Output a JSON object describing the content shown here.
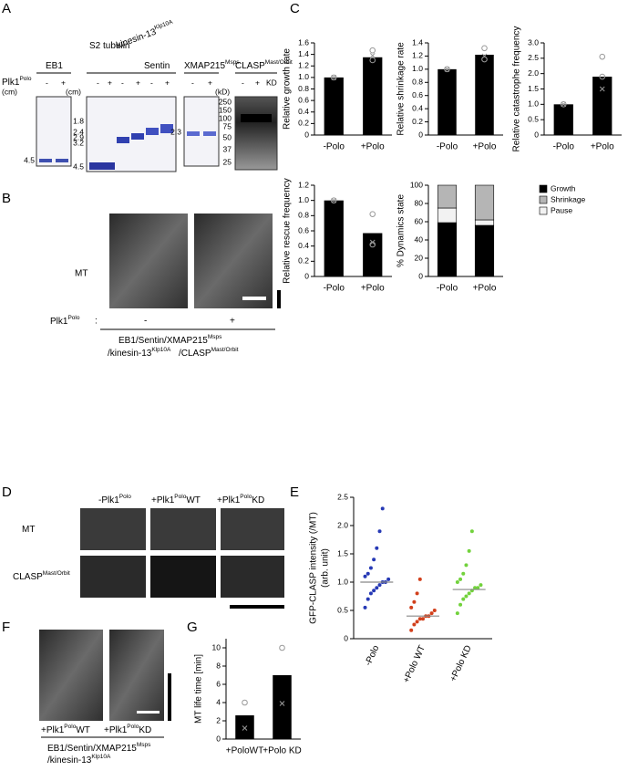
{
  "labels": {
    "A": "A",
    "B": "B",
    "C": "C",
    "D": "D",
    "E": "E",
    "F": "F",
    "G": "G"
  },
  "a": {
    "plk": {
      "t": "Plk1",
      "s": "Polo"
    },
    "minus": "-",
    "plus": "+",
    "kd": "KD",
    "cm": "(cm)",
    "kd_unit": "(kD)",
    "proteins": [
      {
        "t": "EB1"
      },
      {
        "t": "S2 tubulin"
      },
      {
        "t": "kinesin-13",
        "s": "Klp10A"
      },
      {
        "t": "Sentin"
      },
      {
        "t": "XMAP215",
        "s": "Msps"
      },
      {
        "t": "CLASP",
        "s": "Mast/Orbit"
      }
    ],
    "markers": {
      "eb1": [
        "4.5"
      ],
      "mix": [
        "1.8",
        "2.4",
        "2.9",
        "3.2",
        "4.5"
      ],
      "xmap": [
        "2.3"
      ],
      "clasp": [
        "250",
        "150",
        "100",
        "75",
        "50",
        "37",
        "25"
      ]
    }
  },
  "b": {
    "mt": "MT",
    "plk": {
      "t": "Plk1",
      "s": "Polo"
    },
    "colon": ":",
    "minus": "-",
    "plus": "+",
    "line1": {
      "t": "EB1/Sentin/XMAP215",
      "s": "Msps"
    },
    "line2a": {
      "t": "/kinesin-13",
      "s": "Klp10A"
    },
    "line2b": {
      "t": "/CLASP",
      "s": "Mast/Orbit"
    }
  },
  "d": {
    "cols": [
      {
        "t": "-Plk1",
        "s": "Polo"
      },
      {
        "t": "+Plk1",
        "s": "Polo",
        "u": "WT"
      },
      {
        "t": "+Plk1",
        "s": "Polo",
        "u": "KD"
      }
    ],
    "rows": [
      {
        "t": "MT"
      },
      {
        "t": "CLASP",
        "s": "Mast/Orbit"
      }
    ]
  },
  "f": {
    "cols": [
      {
        "t": "+Plk1",
        "s": "Polo",
        "u": "WT"
      },
      {
        "t": "+Plk1",
        "s": "Polo",
        "u": "KD"
      }
    ],
    "line1": {
      "t": "EB1/Sentin/XMAP215",
      "s": "Msps"
    },
    "line2": {
      "t": "/kinesin-13",
      "s": "Klp10A"
    }
  },
  "chart_data": [
    {
      "type": "bar",
      "ylabel": "Relative growth rate",
      "categories": [
        "-Polo",
        "+Polo"
      ],
      "values": [
        1.0,
        1.35
      ],
      "color": "#000000",
      "circles": [
        [
          1.0
        ],
        [
          1.47,
          1.3
        ]
      ],
      "crosses": [
        [
          1.0
        ],
        [
          1.38
        ]
      ],
      "ylim": [
        0,
        1.6
      ],
      "yticks": [
        0,
        0.2,
        0.4,
        0.6,
        0.8,
        {
          "value": 1,
          "label": "1.0"
        },
        1.2,
        1.4,
        1.6
      ]
    },
    {
      "type": "bar",
      "ylabel": "Relative shrinkage rate",
      "categories": [
        "-Polo",
        "+Polo"
      ],
      "values": [
        1.0,
        1.22
      ],
      "color": "#000000",
      "circles": [
        [
          1.0
        ],
        [
          1.32,
          1.15
        ]
      ],
      "crosses": [
        [
          1.0
        ],
        [
          1.2
        ]
      ],
      "ylim": [
        0,
        1.4
      ],
      "yticks": [
        0,
        0.2,
        0.4,
        0.6,
        0.8,
        {
          "value": 1,
          "label": "1.0"
        },
        1.2,
        1.4
      ]
    },
    {
      "type": "bar",
      "ylabel": "Relative catastrophe frequency",
      "categories": [
        "-Polo",
        "+Polo"
      ],
      "values": [
        1.0,
        1.9
      ],
      "color": "#000000",
      "circles": [
        [
          1.0
        ],
        [
          2.55,
          1.9
        ]
      ],
      "crosses": [
        [
          1.0
        ],
        [
          1.5
        ]
      ],
      "ylim": [
        0,
        3.0
      ],
      "yticks": [
        0,
        0.5,
        {
          "value": 1,
          "label": "1.0"
        },
        1.5,
        {
          "value": 2,
          "label": "2.0"
        },
        2.5,
        {
          "value": 3,
          "label": "3.0"
        }
      ]
    },
    {
      "type": "bar",
      "ylabel": "Relative rescue frequency",
      "categories": [
        "-Polo",
        "+Polo"
      ],
      "values": [
        1.0,
        0.57
      ],
      "color": "#000000",
      "circles": [
        [
          1.0
        ],
        [
          0.82,
          0.42
        ]
      ],
      "crosses": [
        [
          1.0
        ],
        [
          0.45
        ]
      ],
      "ylim": [
        0,
        1.2
      ],
      "yticks": [
        0,
        0.2,
        0.4,
        0.6,
        0.8,
        {
          "value": 1,
          "label": "1.0"
        },
        1.2
      ]
    },
    {
      "type": "stacked_bar",
      "ylabel": "% Dynamics state",
      "categories": [
        "-Polo",
        "+Polo"
      ],
      "series": [
        {
          "name": "Growth",
          "color": "#000000",
          "values": [
            59,
            56
          ]
        },
        {
          "name": "Pause",
          "color": "#f2f2f2",
          "values": [
            16,
            6
          ]
        },
        {
          "name": "Shrinkage",
          "color": "#b5b5b5",
          "values": [
            25,
            38
          ]
        }
      ],
      "legend_order": [
        0,
        2,
        1
      ],
      "ylim": [
        0,
        100
      ],
      "yticks": [
        0,
        20,
        40,
        60,
        80,
        100
      ]
    },
    {
      "type": "strip",
      "ylabel": "GFP-CLASP intensity (/MT)",
      "ylabel2": "(arb. unit)",
      "categories": [
        "-Polo",
        "+Polo WT",
        "+Polo KD"
      ],
      "colors": [
        "#2639b5",
        "#d2401c",
        "#72d23c"
      ],
      "values": [
        [
          0.55,
          0.7,
          0.8,
          0.85,
          0.9,
          0.95,
          1.0,
          1.0,
          1.05,
          1.1,
          1.15,
          1.25,
          1.4,
          1.6,
          1.9,
          2.3
        ],
        [
          0.15,
          0.25,
          0.3,
          0.35,
          0.35,
          0.4,
          0.4,
          0.45,
          0.5,
          0.55,
          0.65,
          0.8,
          1.05
        ],
        [
          0.45,
          0.6,
          0.7,
          0.75,
          0.8,
          0.85,
          0.9,
          0.9,
          0.95,
          1.0,
          1.05,
          1.15,
          1.3,
          1.55,
          1.9
        ]
      ],
      "means": [
        1.0,
        0.4,
        0.87
      ],
      "ylim": [
        0,
        2.5
      ],
      "yticks": [
        0,
        0.5,
        {
          "value": 1,
          "label": "1.0"
        },
        1.5,
        {
          "value": 2,
          "label": "2.0"
        },
        2.5
      ]
    },
    {
      "type": "bar",
      "ylabel": "MT life time [min]",
      "categories": [
        "+PoloWT",
        "+Polo KD"
      ],
      "values": [
        2.6,
        7.0
      ],
      "color": "#000000",
      "circles": [
        [
          4.0
        ],
        [
          10.0
        ]
      ],
      "crosses": [
        [
          1.2
        ],
        [
          3.9
        ]
      ],
      "ylim": [
        0,
        11
      ],
      "yticks": [
        0,
        2,
        4,
        6,
        8,
        10
      ]
    }
  ]
}
